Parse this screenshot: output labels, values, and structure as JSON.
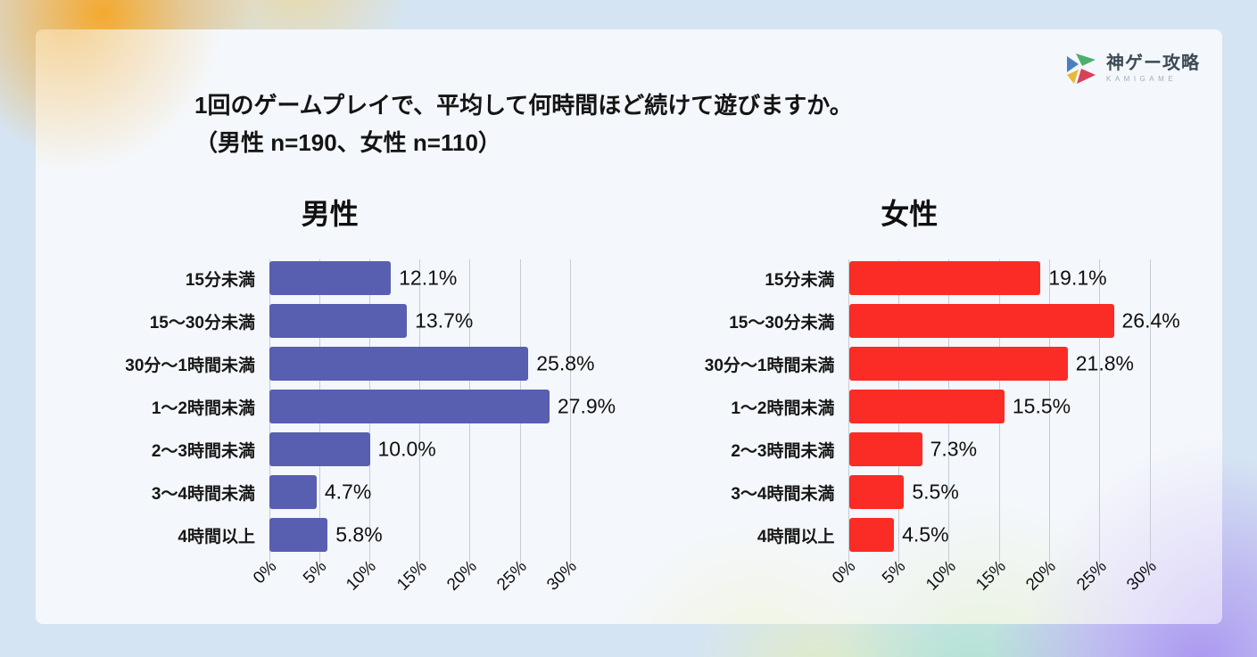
{
  "logo": {
    "brand": "神ゲー攻略",
    "brand_sub": "KAMIGAME"
  },
  "title": {
    "line1": "1回のゲームプレイで、平均して何時間ほど続けて遊びますか。",
    "line2": "（男性 n=190、女性 n=110）"
  },
  "chart_data": [
    {
      "type": "bar",
      "orientation": "horizontal",
      "title": "男性",
      "sample_size_label": "n=190",
      "categories": [
        "15分未満",
        "15～30分未満",
        "30分～1時間未満",
        "1～2時間未満",
        "2～3時間未満",
        "3～4時間未満",
        "4時間以上"
      ],
      "values": [
        12.1,
        13.7,
        25.8,
        27.9,
        10.0,
        4.7,
        5.8
      ],
      "value_labels": [
        "12.1%",
        "13.7%",
        "25.8%",
        "27.9%",
        "10.0%",
        "4.7%",
        "5.8%"
      ],
      "xlim": [
        0,
        30
      ],
      "xticks": [
        "0%",
        "5%",
        "10%",
        "15%",
        "20%",
        "25%",
        "30%"
      ],
      "bar_color": "#585eb0",
      "grid": true,
      "legend": false
    },
    {
      "type": "bar",
      "orientation": "horizontal",
      "title": "女性",
      "sample_size_label": "n=110",
      "categories": [
        "15分未満",
        "15～30分未満",
        "30分～1時間未満",
        "1～2時間未満",
        "2～3時間未満",
        "3～4時間未満",
        "4時間以上"
      ],
      "values": [
        19.1,
        26.4,
        21.8,
        15.5,
        7.3,
        5.5,
        4.5
      ],
      "value_labels": [
        "19.1%",
        "26.4%",
        "21.8%",
        "15.5%",
        "7.3%",
        "5.5%",
        "4.5%"
      ],
      "xlim": [
        0,
        30
      ],
      "xticks": [
        "0%",
        "5%",
        "10%",
        "15%",
        "20%",
        "25%",
        "30%"
      ],
      "bar_color": "#fa2c25",
      "grid": true,
      "legend": false
    }
  ],
  "colors": {
    "card_bg": "#f4f7fb",
    "grid_line": "#c6cbd5",
    "text": "#111111",
    "male_bar": "#585eb0",
    "female_bar": "#fa2c25",
    "logo_text": "#3b4a55",
    "logo_sub": "#9fb0bc"
  }
}
